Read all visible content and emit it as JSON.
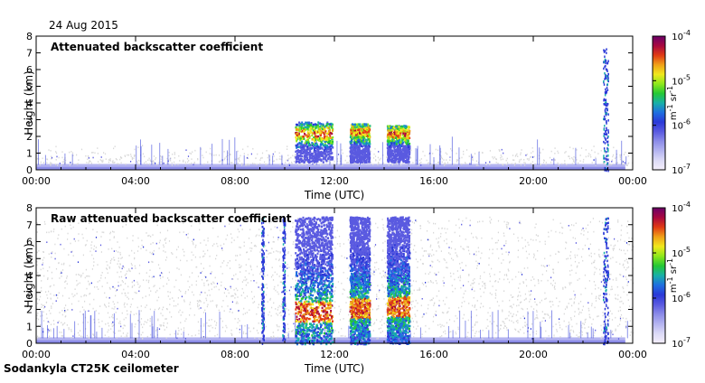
{
  "header": {
    "date": "24 Aug 2015"
  },
  "footer": {
    "instrument": "Sodankyla CT25K ceilometer"
  },
  "colors": {
    "colormap": [
      "#f4eefb",
      "#dcdaf6",
      "#b4b4f0",
      "#8c8ce8",
      "#5a5ae0",
      "#2b39d8",
      "#1f6fe0",
      "#18b0a8",
      "#24c834",
      "#8ee81c",
      "#f0e81c",
      "#f0a018",
      "#e03a14",
      "#a80840",
      "#6a0068"
    ],
    "background_noise": "#d8d8d8"
  },
  "chart_data": [
    {
      "type": "heatmap",
      "title": "Attenuated backscatter coefficient",
      "xlabel": "Time (UTC)",
      "ylabel": "Height (km)",
      "xlim": [
        0,
        24
      ],
      "ylim": [
        0,
        8
      ],
      "xticks": [
        "00:00",
        "04:00",
        "08:00",
        "12:00",
        "16:00",
        "20:00",
        "00:00"
      ],
      "yticks": [
        "0",
        "1",
        "2",
        "3",
        "4",
        "5",
        "6",
        "7",
        "8"
      ],
      "colorbar": {
        "unit": "m-1 sr-1",
        "scale": "log",
        "ticks": [
          "10-7",
          "10-6",
          "10-5",
          "10-4"
        ]
      },
      "features": [
        {
          "kind": "surface_layer",
          "x": [
            0,
            23.7
          ],
          "y": [
            0,
            0.35
          ]
        },
        {
          "kind": "background",
          "x": [
            0,
            24
          ],
          "y": [
            0.3,
            1.5
          ]
        },
        {
          "kind": "cloud",
          "x": [
            10.4,
            11.9
          ],
          "y": [
            0.5,
            2.9
          ],
          "peak": 2.2
        },
        {
          "kind": "cloud",
          "x": [
            12.6,
            13.4
          ],
          "y": [
            0.5,
            2.8
          ],
          "peak": 2.3
        },
        {
          "kind": "cloud",
          "x": [
            14.1,
            15.0
          ],
          "y": [
            0.5,
            2.7
          ],
          "peak": 2.2
        },
        {
          "kind": "column",
          "x": [
            22.8,
            23.0
          ],
          "y": [
            0,
            7.4
          ]
        }
      ]
    },
    {
      "type": "heatmap",
      "title": "Raw attenuated backscatter coefficient",
      "xlabel": "Time (UTC)",
      "ylabel": "Height (km)",
      "xlim": [
        0,
        24
      ],
      "ylim": [
        0,
        8
      ],
      "xticks": [
        "00:00",
        "04:00",
        "08:00",
        "12:00",
        "16:00",
        "20:00",
        "00:00"
      ],
      "yticks": [
        "0",
        "1",
        "2",
        "3",
        "4",
        "5",
        "6",
        "7",
        "8"
      ],
      "colorbar": {
        "unit": "m-1 sr-1",
        "scale": "log",
        "ticks": [
          "10-7",
          "10-6",
          "10-5",
          "10-4"
        ]
      },
      "features": [
        {
          "kind": "surface_layer",
          "x": [
            0,
            23.7
          ],
          "y": [
            0,
            0.35
          ]
        },
        {
          "kind": "background",
          "x": [
            0,
            24
          ],
          "y": [
            0.3,
            7.5
          ]
        },
        {
          "kind": "precip_column",
          "x": [
            10.4,
            11.9
          ],
          "y": [
            0,
            7.5
          ],
          "peak": 1.9
        },
        {
          "kind": "precip_column",
          "x": [
            12.6,
            13.4
          ],
          "y": [
            0,
            7.5
          ],
          "peak": 2.1
        },
        {
          "kind": "precip_column",
          "x": [
            14.1,
            15.0
          ],
          "y": [
            0,
            7.5
          ],
          "peak": 2.2
        },
        {
          "kind": "column",
          "x": [
            9.05,
            9.15
          ],
          "y": [
            0,
            7.5
          ]
        },
        {
          "kind": "column",
          "x": [
            9.9,
            10.0
          ],
          "y": [
            0,
            7.5
          ]
        },
        {
          "kind": "column",
          "x": [
            22.8,
            23.0
          ],
          "y": [
            0,
            7.5
          ]
        }
      ]
    }
  ]
}
